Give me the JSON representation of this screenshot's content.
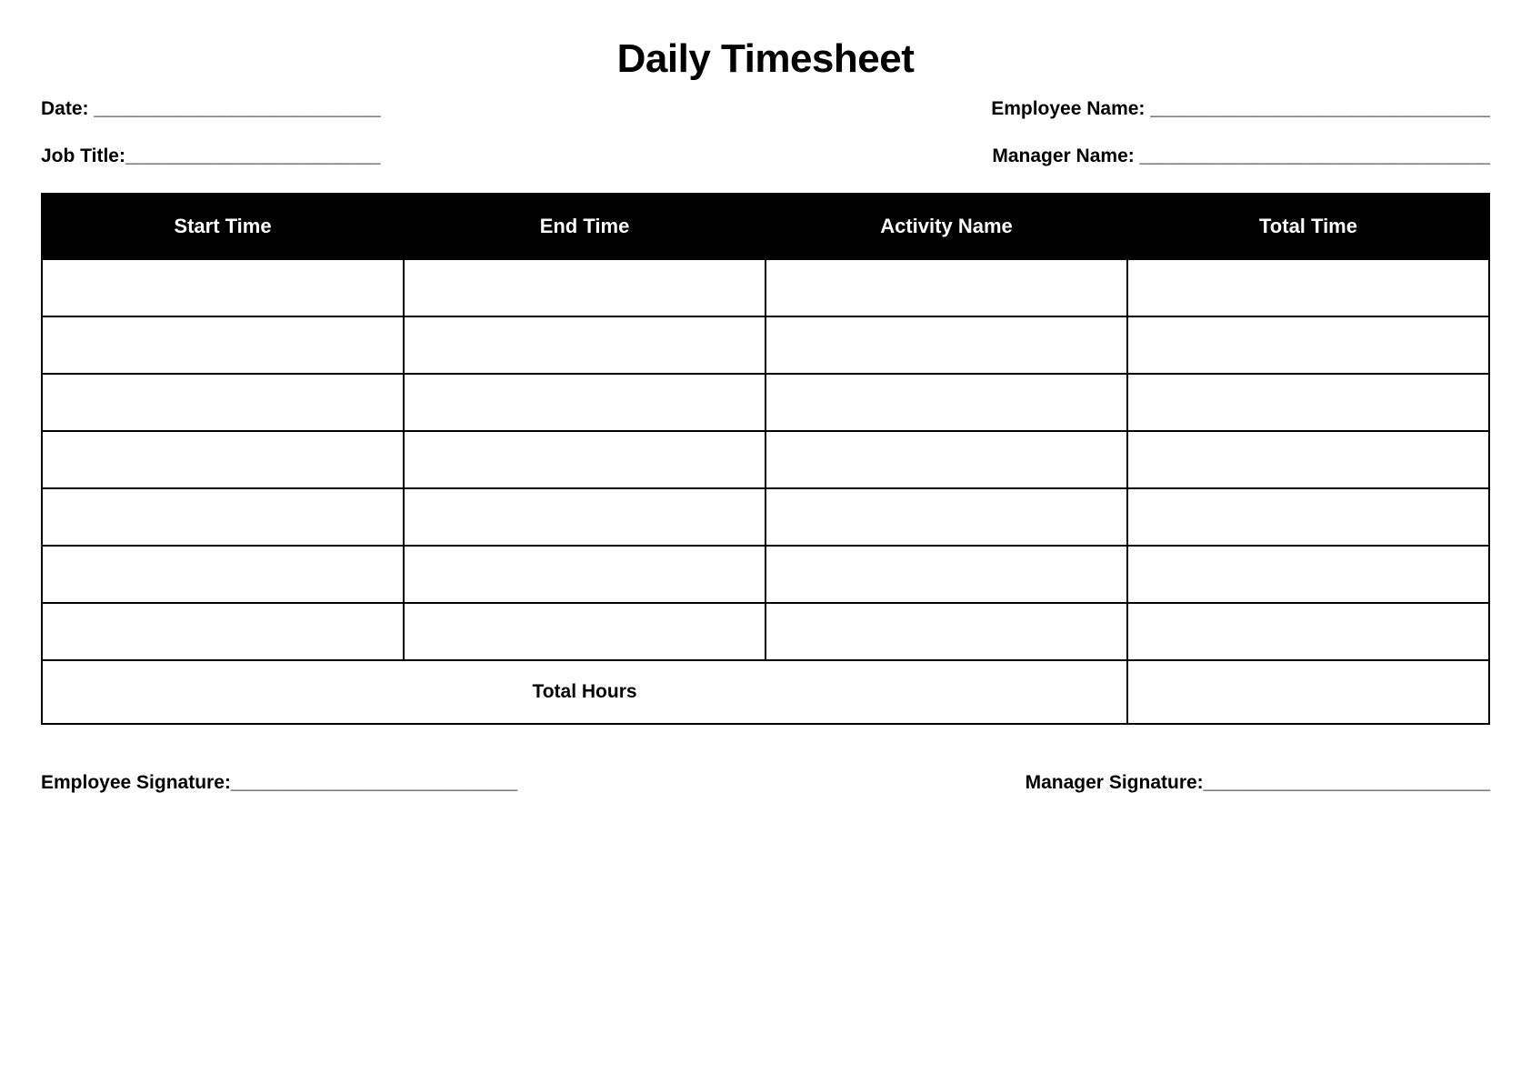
{
  "title": "Daily Timesheet",
  "info": {
    "date_label": "Date: ___________________________",
    "employee_name_label": "Employee Name: ________________________________",
    "job_title_label": "Job Title:________________________",
    "manager_name_label": "Manager Name: _________________________________"
  },
  "table": {
    "columns": [
      "Start Time",
      "End Time",
      "Activity Name",
      "Total Time"
    ],
    "row_count": 7,
    "total_label": "Total Hours",
    "header_bg": "#000000",
    "header_fg": "#ffffff",
    "border_color": "#000000",
    "cell_bg": "#ffffff"
  },
  "signatures": {
    "employee": "Employee Signature:___________________________",
    "manager": "Manager Signature:___________________________"
  }
}
